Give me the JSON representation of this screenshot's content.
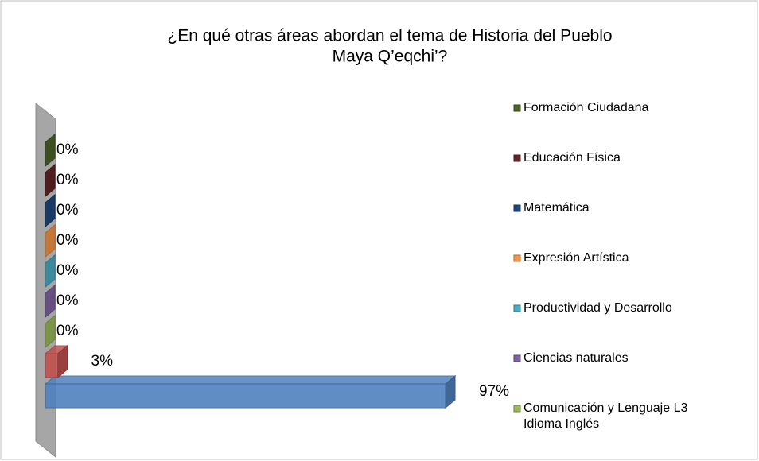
{
  "chart_data": {
    "type": "bar",
    "orientation": "horizontal",
    "title": [
      "¿En qué otras áreas abordan el tema de Historia del Pueblo",
      "Maya Q’eqchi’?"
    ],
    "series": [
      {
        "name": null,
        "color": "#4f81bd",
        "values": [
          97
        ],
        "value_labels": [
          "97%"
        ]
      },
      {
        "name": null,
        "color": "#c0504d",
        "values": [
          3
        ],
        "value_labels": [
          "3%"
        ]
      },
      {
        "name": [
          "Comunicación y Lenguaje L3",
          "Idioma Inglés"
        ],
        "color": "#9bbb59",
        "values": [
          0
        ],
        "value_labels": [
          "0%"
        ]
      },
      {
        "name": [
          "Ciencias naturales"
        ],
        "color": "#8064a2",
        "values": [
          0
        ],
        "value_labels": [
          "0%"
        ]
      },
      {
        "name": [
          "Productividad y Desarrollo"
        ],
        "color": "#4bacc6",
        "values": [
          0
        ],
        "value_labels": [
          "0%"
        ]
      },
      {
        "name": [
          "Expresión Artística"
        ],
        "color": "#f79646",
        "values": [
          0
        ],
        "value_labels": [
          "0%"
        ]
      },
      {
        "name": [
          "Matemática"
        ],
        "color": "#1f497d",
        "values": [
          0
        ],
        "value_labels": [
          "0%"
        ]
      },
      {
        "name": [
          "Educación Física"
        ],
        "color": "#632523",
        "values": [
          0
        ],
        "value_labels": [
          "0%"
        ]
      },
      {
        "name": [
          "Formación Ciudadana"
        ],
        "color": "#4f6228",
        "values": [
          0
        ],
        "value_labels": [
          "0%"
        ]
      }
    ]
  }
}
